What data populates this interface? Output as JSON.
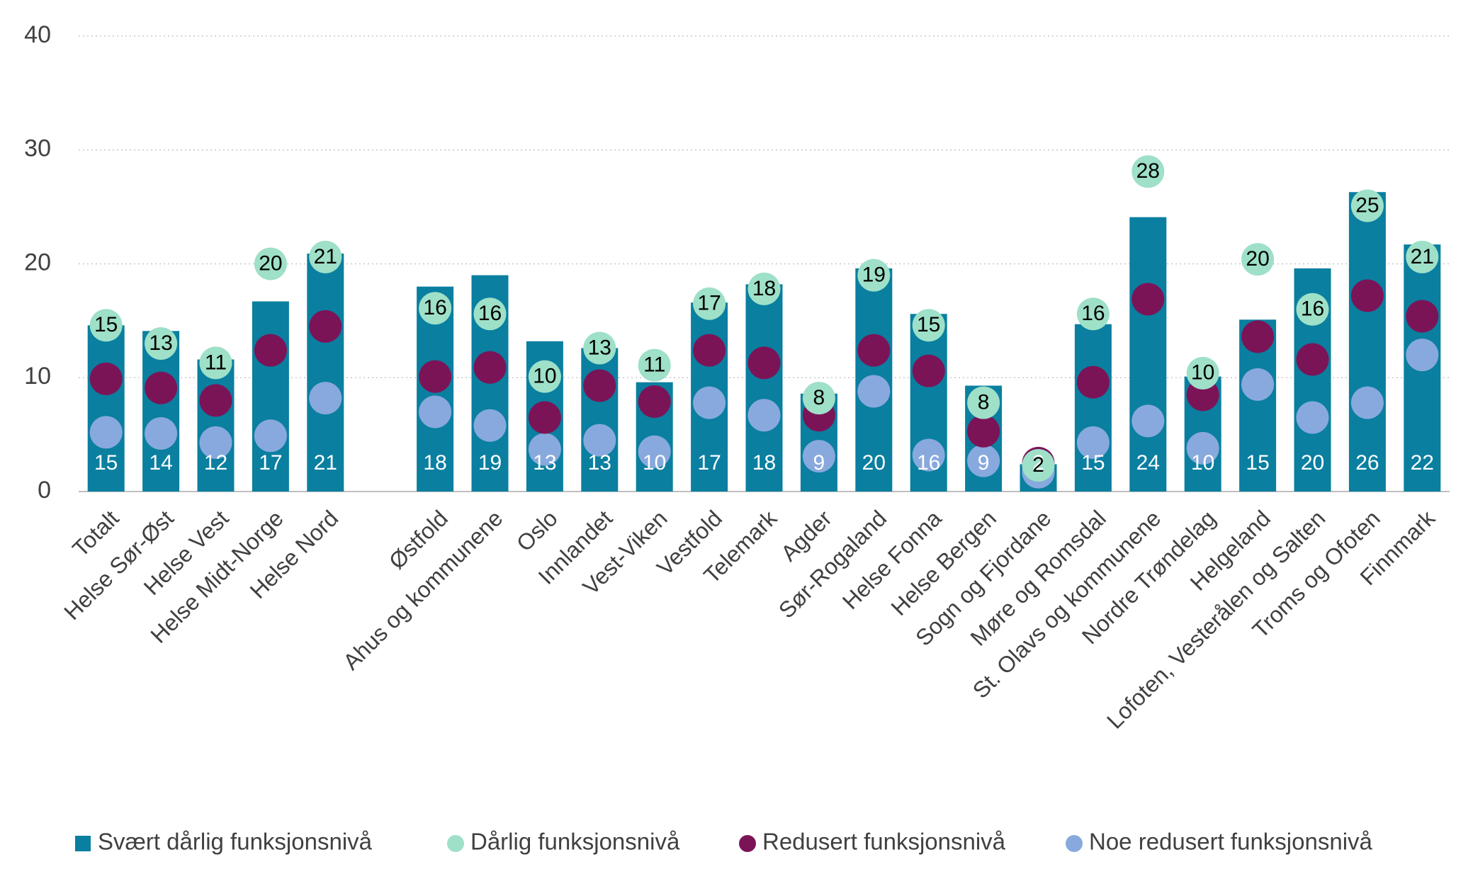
{
  "chart_data": {
    "type": "bar",
    "categories": [
      "Totalt",
      "Helse Sør-Øst",
      "Helse Vest",
      "Helse Midt-Norge",
      "Helse Nord",
      null,
      "Østfold",
      "Ahus og kommunene",
      "Oslo",
      "Innlandet",
      "Vest-Viken",
      "Vestfold",
      "Telemark",
      "Agder",
      "Sør-Rogaland",
      "Helse Fonna",
      "Helse Bergen",
      "Sogn og Fjordane",
      "Møre og Romsdal",
      "St. Olavs og kommunene",
      "Nordre Trøndelag",
      "Helgeland",
      "Lofoten, Vesterålen og Salten",
      "Troms og Ofoten",
      "Finnmark"
    ],
    "series": [
      {
        "name": "Svært dårlig funksjonsnivå",
        "type": "bar",
        "color": "#0a7fa0",
        "values": [
          14.6,
          14.1,
          11.6,
          16.7,
          20.9,
          null,
          18.0,
          19.0,
          13.2,
          12.6,
          9.6,
          16.6,
          18.2,
          8.6,
          19.6,
          15.6,
          9.3,
          2.4,
          14.7,
          24.1,
          10.1,
          15.1,
          19.6,
          26.3,
          21.7
        ],
        "value_labels": [
          "15",
          "14",
          "12",
          "17",
          "21",
          null,
          "18",
          "19",
          "13",
          "13",
          "10",
          "17",
          "18",
          "9",
          "20",
          "16",
          "9",
          "2",
          "15",
          "24",
          "10",
          "15",
          "20",
          "26",
          "22"
        ]
      },
      {
        "name": "Dårlig funksjonsnivå",
        "type": "scatter",
        "color": "#9ee0c8",
        "values": [
          14.6,
          13.0,
          11.3,
          20.0,
          20.6,
          null,
          16.1,
          15.6,
          10.1,
          12.6,
          11.1,
          16.5,
          17.8,
          8.2,
          19.0,
          14.6,
          7.8,
          2.3,
          15.6,
          28.1,
          10.4,
          20.4,
          16.0,
          25.1,
          20.6
        ],
        "value_labels": [
          "15",
          "13",
          "11",
          "20",
          "21",
          null,
          "16",
          "16",
          "10",
          "13",
          "11",
          "17",
          "18",
          "8",
          "19",
          "15",
          "8",
          "2",
          "16",
          "28",
          "10",
          "20",
          "16",
          "25",
          "21"
        ]
      },
      {
        "name": "Redusert funksjonsnivå",
        "type": "scatter",
        "color": "#7b1457",
        "values": [
          9.9,
          9.1,
          8.0,
          12.4,
          14.5,
          null,
          10.1,
          10.9,
          6.5,
          9.3,
          7.9,
          12.4,
          11.3,
          6.7,
          12.4,
          10.6,
          5.3,
          2.5,
          9.6,
          16.9,
          8.5,
          13.6,
          11.6,
          17.2,
          15.4
        ]
      },
      {
        "name": "Noe redusert funksjonsnivå",
        "type": "scatter",
        "color": "#88a9dd",
        "values": [
          5.2,
          5.1,
          4.3,
          4.9,
          8.2,
          null,
          7.0,
          5.8,
          3.7,
          4.5,
          3.5,
          7.8,
          6.7,
          3.1,
          8.8,
          3.2,
          2.7,
          1.7,
          4.3,
          6.2,
          3.8,
          9.4,
          6.5,
          7.8,
          12.0
        ]
      }
    ],
    "ylim": [
      0,
      40
    ],
    "yticks": [
      0,
      10,
      20,
      30,
      40
    ],
    "grid": true,
    "legend": "bottom"
  }
}
